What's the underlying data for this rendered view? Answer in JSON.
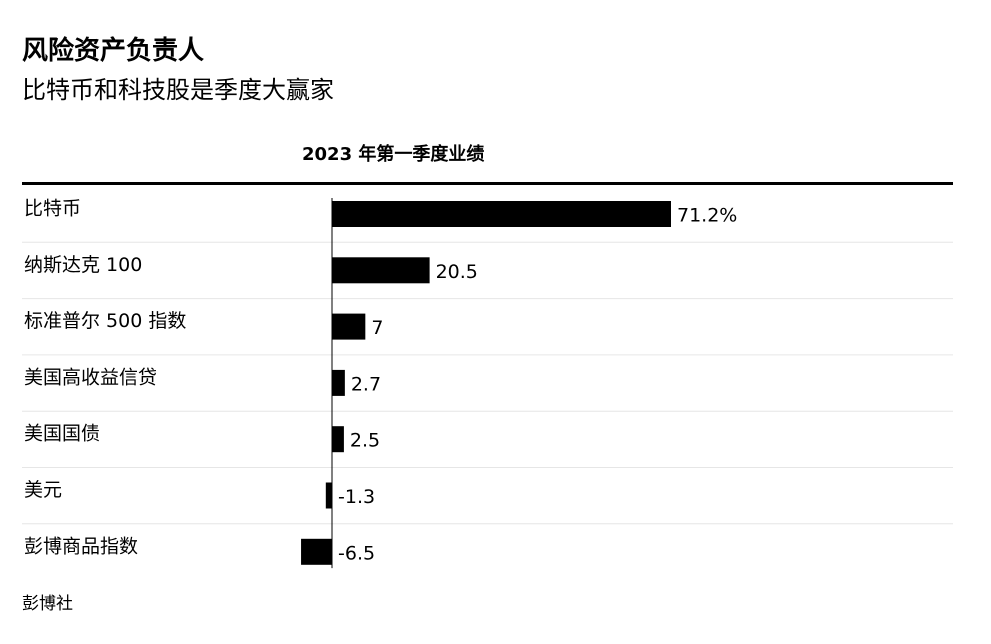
{
  "title": "风险资产负责人",
  "subtitle": "比特币和科技股是季度大赢家",
  "source": "彭博社",
  "colors": {
    "bar": "#000000",
    "row_divider": "#e6e6e6",
    "axis": "#000000"
  },
  "chart_data": {
    "type": "bar",
    "orientation": "horizontal",
    "title": "2023 年第一季度业绩",
    "categories": [
      "比特币",
      "纳斯达克 100",
      "标准普尔 500 指数",
      "美国高收益信贷",
      "美国国债",
      "美元",
      "彭博商品指数"
    ],
    "values": [
      71.2,
      20.5,
      7,
      2.7,
      2.5,
      -1.3,
      -6.5
    ],
    "value_labels": [
      "71.2%",
      "20.5",
      "7",
      "2.7",
      "2.5",
      "-1.3",
      "-6.5"
    ],
    "xlim": [
      -7,
      75
    ],
    "grid": false,
    "legend": "none"
  }
}
